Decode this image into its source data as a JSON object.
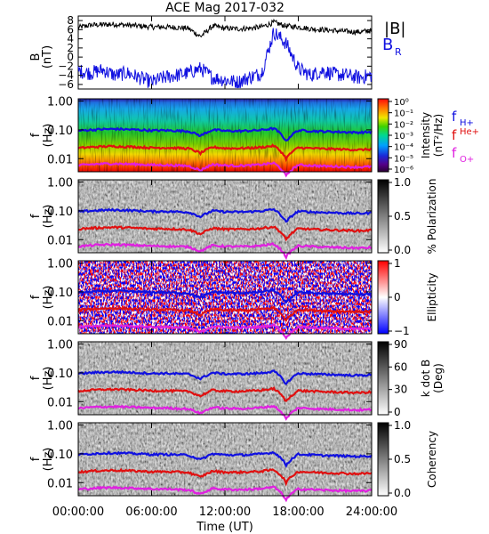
{
  "title": "ACE Mag 2017-032",
  "colors": {
    "black": "#000000",
    "blue": "#1010e0",
    "red": "#e01010",
    "magenta": "#e020e0"
  },
  "chart_data": [
    {
      "type": "line",
      "panel": "magnetic-field",
      "ylabel_lines": [
        "B",
        "(nT)"
      ],
      "ylim": [
        -7,
        9
      ],
      "yticks": [
        "8",
        "6",
        "4",
        "2",
        "0",
        "−2",
        "−4",
        "−6"
      ],
      "legend": [
        "|B|",
        "B",
        "R"
      ],
      "series": [
        {
          "name": "|B|",
          "x_hours": [
            0,
            1,
            2,
            3,
            4,
            5,
            6,
            7,
            8,
            9,
            10,
            11,
            12,
            13,
            14,
            15,
            16,
            17,
            18,
            19,
            20,
            21,
            22,
            23,
            24
          ],
          "values": [
            6.5,
            7.0,
            7.1,
            7.2,
            7.0,
            6.8,
            6.6,
            6.6,
            6.5,
            6.3,
            4.5,
            6.8,
            6.3,
            6.2,
            6.3,
            6.6,
            7.6,
            6.8,
            6.6,
            6.2,
            6.0,
            5.8,
            5.6,
            5.5,
            5.8
          ]
        },
        {
          "name": "B_R",
          "x_hours": [
            0,
            1,
            2,
            3,
            4,
            5,
            6,
            7,
            8,
            9,
            10,
            11,
            12,
            13,
            14,
            15,
            16,
            17,
            18,
            19,
            20,
            21,
            22,
            23,
            24
          ],
          "values": [
            -3.0,
            -3.5,
            -2.8,
            -4.0,
            -3.5,
            -4.5,
            -5.5,
            -4.5,
            -4.0,
            -3.5,
            -2.5,
            -4.5,
            -5.0,
            -5.5,
            -4.5,
            -3.5,
            5.5,
            3.0,
            -2.5,
            -4.0,
            -3.0,
            -3.8,
            -4.0,
            -4.5,
            -4.0
          ]
        }
      ]
    },
    {
      "type": "heatmap",
      "panel": "intensity",
      "ylabel_lines": [
        "f",
        "(Hz)"
      ],
      "yscale": "log",
      "ylim": [
        0.0035,
        1.2
      ],
      "yticks": [
        "1.00",
        "0.10",
        "0.01"
      ],
      "colorbar_label_lines": [
        "Intensity",
        "(nT²/Hz)"
      ],
      "colorbar_ticks": [
        "10⁰",
        "10⁻¹",
        "10⁻²",
        "10⁻³",
        "10⁻⁴",
        "10⁻⁵",
        "10⁻⁶"
      ],
      "legend": [
        "f",
        "H+",
        "f",
        "He+",
        "f",
        "O+"
      ]
    },
    {
      "type": "heatmap",
      "panel": "polarization",
      "ylabel_lines": [
        "f",
        "(Hz)"
      ],
      "yscale": "log",
      "ylim": [
        0.0035,
        1.2
      ],
      "yticks": [
        "1.00",
        "0.10",
        "0.01"
      ],
      "colorbar_label": "% Polarization",
      "colorbar_ticks": [
        "1.0",
        "0.5",
        "0.0"
      ]
    },
    {
      "type": "heatmap",
      "panel": "ellipticity",
      "ylabel_lines": [
        "f",
        "(Hz)"
      ],
      "yscale": "log",
      "ylim": [
        0.0035,
        1.2
      ],
      "yticks": [
        "1.00",
        "0.10",
        "0.01"
      ],
      "colorbar_label": "Ellipticity",
      "colorbar_ticks": [
        "1",
        "0",
        "−1"
      ]
    },
    {
      "type": "heatmap",
      "panel": "k-dot-b",
      "ylabel_lines": [
        "f",
        "(Hz)"
      ],
      "yscale": "log",
      "ylim": [
        0.0035,
        1.2
      ],
      "yticks": [
        "1.00",
        "0.10",
        "0.01"
      ],
      "colorbar_label_lines": [
        "k dot B",
        "(Deg)"
      ],
      "colorbar_ticks": [
        "90",
        "60",
        "30",
        "0"
      ]
    },
    {
      "type": "heatmap",
      "panel": "coherency",
      "ylabel_lines": [
        "f",
        "(Hz)"
      ],
      "yscale": "log",
      "ylim": [
        0.0035,
        1.2
      ],
      "yticks": [
        "1.00",
        "0.10",
        "0.01"
      ],
      "colorbar_label": "Coherency",
      "colorbar_ticks": [
        "1.0",
        "0.5",
        "0.0"
      ]
    }
  ],
  "gyrofrequency_lines": {
    "x_hours": [
      0,
      1,
      2,
      3,
      4,
      5,
      6,
      7,
      8,
      9,
      10,
      11,
      12,
      13,
      14,
      15,
      16,
      17,
      18,
      19,
      20,
      21,
      22,
      23,
      24
    ],
    "fH_Hz": [
      0.093,
      0.1,
      0.105,
      0.107,
      0.104,
      0.1,
      0.095,
      0.096,
      0.093,
      0.09,
      0.062,
      0.1,
      0.092,
      0.091,
      0.093,
      0.099,
      0.112,
      0.04,
      0.096,
      0.092,
      0.088,
      0.086,
      0.083,
      0.081,
      0.085
    ],
    "fHe_Hz": [
      0.0233,
      0.025,
      0.0263,
      0.0268,
      0.026,
      0.025,
      0.0238,
      0.024,
      0.0233,
      0.0225,
      0.0155,
      0.025,
      0.023,
      0.0228,
      0.0233,
      0.0248,
      0.028,
      0.01,
      0.024,
      0.023,
      0.022,
      0.0215,
      0.0208,
      0.0203,
      0.0213
    ],
    "fO_Hz": [
      0.0058,
      0.0063,
      0.0066,
      0.0067,
      0.0065,
      0.0063,
      0.006,
      0.006,
      0.0058,
      0.0056,
      0.0039,
      0.0063,
      0.0058,
      0.0057,
      0.0058,
      0.0062,
      0.007,
      0.0025,
      0.006,
      0.0058,
      0.0055,
      0.0054,
      0.0052,
      0.0051,
      0.0053
    ]
  },
  "xaxis": {
    "label": "Time (UT)",
    "xlim_hours": [
      0,
      24
    ],
    "ticks_hours": [
      0,
      6,
      12,
      18,
      24
    ],
    "tick_labels": [
      "00:00:00",
      "06:00:00",
      "12:00:00",
      "18:00:00",
      "24:00:00"
    ]
  }
}
